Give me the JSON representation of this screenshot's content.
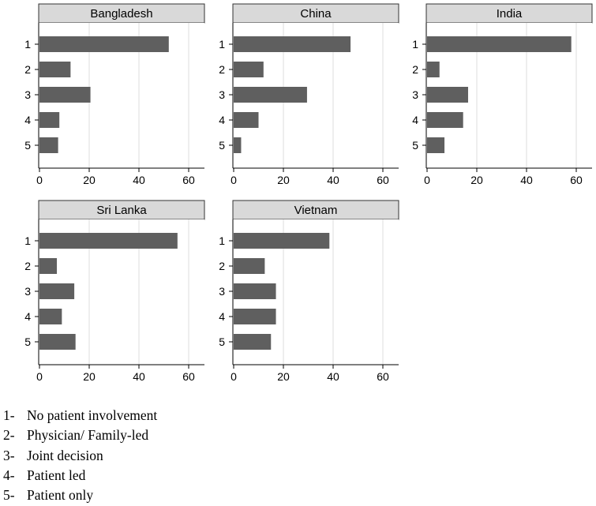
{
  "chart_data": [
    {
      "type": "bar",
      "orientation": "horizontal",
      "title": "Bangladesh",
      "categories": [
        "1",
        "2",
        "3",
        "4",
        "5"
      ],
      "values": [
        52,
        12.5,
        20.5,
        8,
        7.5
      ],
      "xticks": [
        "0",
        "20",
        "40",
        "60"
      ],
      "xlim": [
        0,
        65
      ],
      "grid": true,
      "color": "#5f5f5f"
    },
    {
      "type": "bar",
      "orientation": "horizontal",
      "title": "China",
      "categories": [
        "1",
        "2",
        "3",
        "4",
        "5"
      ],
      "values": [
        47,
        12,
        29.5,
        10,
        3
      ],
      "xticks": [
        "0",
        "20",
        "40",
        "60"
      ],
      "xlim": [
        0,
        65
      ],
      "grid": true,
      "color": "#5f5f5f"
    },
    {
      "type": "bar",
      "orientation": "horizontal",
      "title": "India",
      "categories": [
        "1",
        "2",
        "3",
        "4",
        "5"
      ],
      "values": [
        58,
        5,
        16.5,
        14.5,
        7
      ],
      "xticks": [
        "0",
        "20",
        "40",
        "60"
      ],
      "xlim": [
        0,
        65
      ],
      "grid": true,
      "color": "#5f5f5f"
    },
    {
      "type": "bar",
      "orientation": "horizontal",
      "title": "Sri Lanka",
      "categories": [
        "1",
        "2",
        "3",
        "4",
        "5"
      ],
      "values": [
        55.5,
        7,
        14,
        9,
        14.5
      ],
      "xticks": [
        "0",
        "20",
        "40",
        "60"
      ],
      "xlim": [
        0,
        65
      ],
      "grid": true,
      "color": "#5f5f5f"
    },
    {
      "type": "bar",
      "orientation": "horizontal",
      "title": "Vietnam",
      "categories": [
        "1",
        "2",
        "3",
        "4",
        "5"
      ],
      "values": [
        38.5,
        12.5,
        17,
        17,
        15
      ],
      "xticks": [
        "0",
        "20",
        "40",
        "60"
      ],
      "xlim": [
        0,
        65
      ],
      "grid": true,
      "color": "#5f5f5f"
    }
  ],
  "legend": [
    {
      "num": "1-",
      "label": "No patient involvement"
    },
    {
      "num": "2-",
      "label": "Physician/ Family-led"
    },
    {
      "num": "3-",
      "label": "Joint decision"
    },
    {
      "num": "4-",
      "label": "Patient led"
    },
    {
      "num": "5-",
      "label": "Patient only"
    }
  ]
}
